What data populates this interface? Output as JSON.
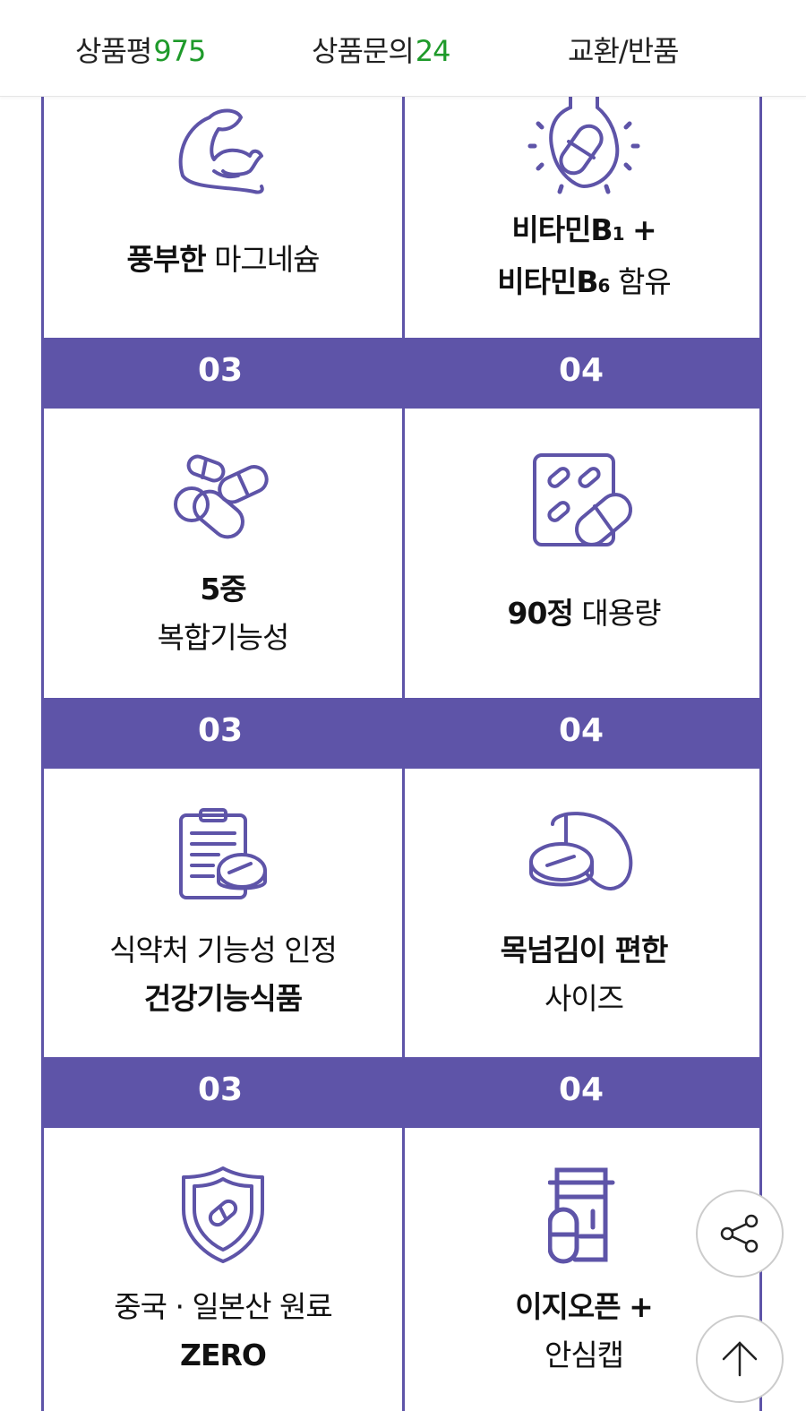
{
  "tabs": [
    {
      "label": "상품평",
      "count": "975"
    },
    {
      "label": "상품문의",
      "count": "24"
    },
    {
      "label": "교환/반품"
    }
  ],
  "accent_color": "#5e54a8",
  "count_color": "#1e9a2a",
  "section_bars": [
    {
      "left": "03",
      "right": "04"
    },
    {
      "left": "03",
      "right": "04"
    },
    {
      "left": "03",
      "right": "04"
    }
  ],
  "features": [
    {
      "icon": "muscle-icon",
      "bold": "풍부한",
      "regular": "마그네슘"
    },
    {
      "icon": "vitamin-bulb-icon",
      "line1_bold": "비타민B",
      "line1_sub": "1",
      "line1_plus": "+",
      "line2_bold": "비타민B",
      "line2_sub": "6",
      "line2_regular": "함유"
    },
    {
      "icon": "pills-icon",
      "line1_bold": "5중",
      "line2_regular": "복합기능성"
    },
    {
      "icon": "blister-pack-icon",
      "bold": "90정",
      "regular": "대용량"
    },
    {
      "icon": "clipboard-pill-icon",
      "line1_regular": "식약처 기능성 인정",
      "line2_bold": "건강기능식품"
    },
    {
      "icon": "capsule-tablet-icon",
      "line1_bold": "목넘김이 편한",
      "line2_regular": "사이즈"
    },
    {
      "icon": "shield-pill-icon",
      "line1_regular": "중국 · 일본산 원료",
      "line2_bold": "ZERO"
    },
    {
      "icon": "pill-bottle-icon",
      "line1_bold": "이지오픈",
      "line1_plus": "+",
      "line2_regular": "안심캡"
    }
  ],
  "buttons": {
    "share": "share-icon",
    "top": "arrow-up-icon"
  }
}
